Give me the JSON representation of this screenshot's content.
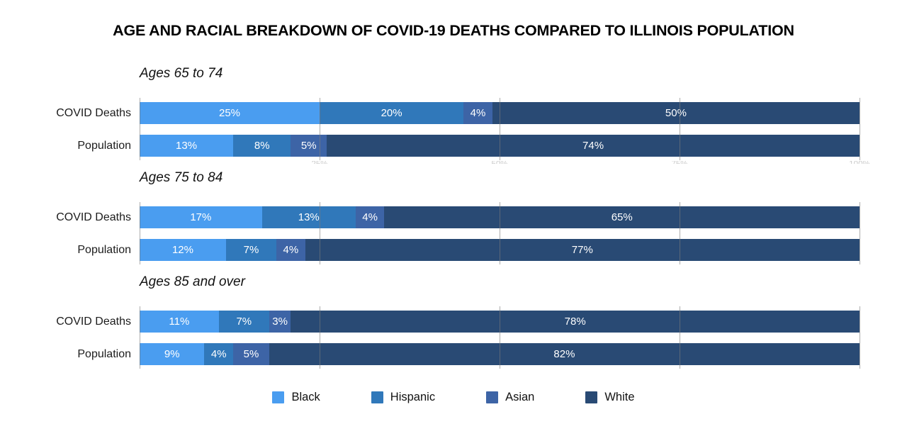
{
  "title": "AGE AND RACIAL BREAKDOWN OF COVID-19 DEATHS COMPARED TO ILLINOIS POPULATION",
  "palette": {
    "Black": "#4a9df0",
    "Hispanic": "#3078ba",
    "Asian": "#3d64a6",
    "White": "#294a74"
  },
  "grid_color": "#7a7a7a",
  "legend": {
    "items": [
      {
        "label": "Black"
      },
      {
        "label": "Hispanic"
      },
      {
        "label": "Asian"
      },
      {
        "label": "White"
      }
    ]
  },
  "chart_data": {
    "type": "bar",
    "stacked": true,
    "orientation": "horizontal",
    "unit": "%",
    "categories": [
      "Black",
      "Hispanic",
      "Asian",
      "White"
    ],
    "x_axis": {
      "range": [
        0,
        100
      ],
      "ticks": [
        25,
        50,
        75,
        100
      ],
      "tick_labels": [
        "25%",
        "50%",
        "75%",
        "100%"
      ],
      "gridlines": true
    },
    "groups": [
      {
        "heading": "Ages 65 to 74",
        "rows": [
          {
            "label": "COVID Deaths",
            "segments": [
              {
                "race": "Black",
                "value": 25,
                "text": "25%"
              },
              {
                "race": "Hispanic",
                "value": 20,
                "text": "20%"
              },
              {
                "race": "Asian",
                "value": 4,
                "text": "4%"
              },
              {
                "race": "White",
                "value": 50,
                "text": "50%"
              }
            ]
          },
          {
            "label": "Population",
            "segments": [
              {
                "race": "Black",
                "value": 13,
                "text": "13%"
              },
              {
                "race": "Hispanic",
                "value": 8,
                "text": "8%"
              },
              {
                "race": "Asian",
                "value": 5,
                "text": "5%"
              },
              {
                "race": "White",
                "value": 74,
                "text": "74%"
              }
            ]
          }
        ]
      },
      {
        "heading": "Ages 75 to 84",
        "rows": [
          {
            "label": "COVID Deaths",
            "segments": [
              {
                "race": "Black",
                "value": 17,
                "text": "17%"
              },
              {
                "race": "Hispanic",
                "value": 13,
                "text": "13%"
              },
              {
                "race": "Asian",
                "value": 4,
                "text": "4%"
              },
              {
                "race": "White",
                "value": 65,
                "text": "65%"
              }
            ]
          },
          {
            "label": "Population",
            "segments": [
              {
                "race": "Black",
                "value": 12,
                "text": "12%"
              },
              {
                "race": "Hispanic",
                "value": 7,
                "text": "7%"
              },
              {
                "race": "Asian",
                "value": 4,
                "text": "4%"
              },
              {
                "race": "White",
                "value": 77,
                "text": "77%"
              }
            ]
          }
        ]
      },
      {
        "heading": "Ages 85 and over",
        "rows": [
          {
            "label": "COVID Deaths",
            "segments": [
              {
                "race": "Black",
                "value": 11,
                "text": "11%"
              },
              {
                "race": "Hispanic",
                "value": 7,
                "text": "7%"
              },
              {
                "race": "Asian",
                "value": 3,
                "text": "3%"
              },
              {
                "race": "White",
                "value": 78,
                "text": "78%"
              }
            ]
          },
          {
            "label": "Population",
            "segments": [
              {
                "race": "Black",
                "value": 9,
                "text": "9%"
              },
              {
                "race": "Hispanic",
                "value": 4,
                "text": "4%"
              },
              {
                "race": "Asian",
                "value": 5,
                "text": "5%"
              },
              {
                "race": "White",
                "value": 82,
                "text": "82%"
              }
            ]
          }
        ]
      }
    ]
  }
}
